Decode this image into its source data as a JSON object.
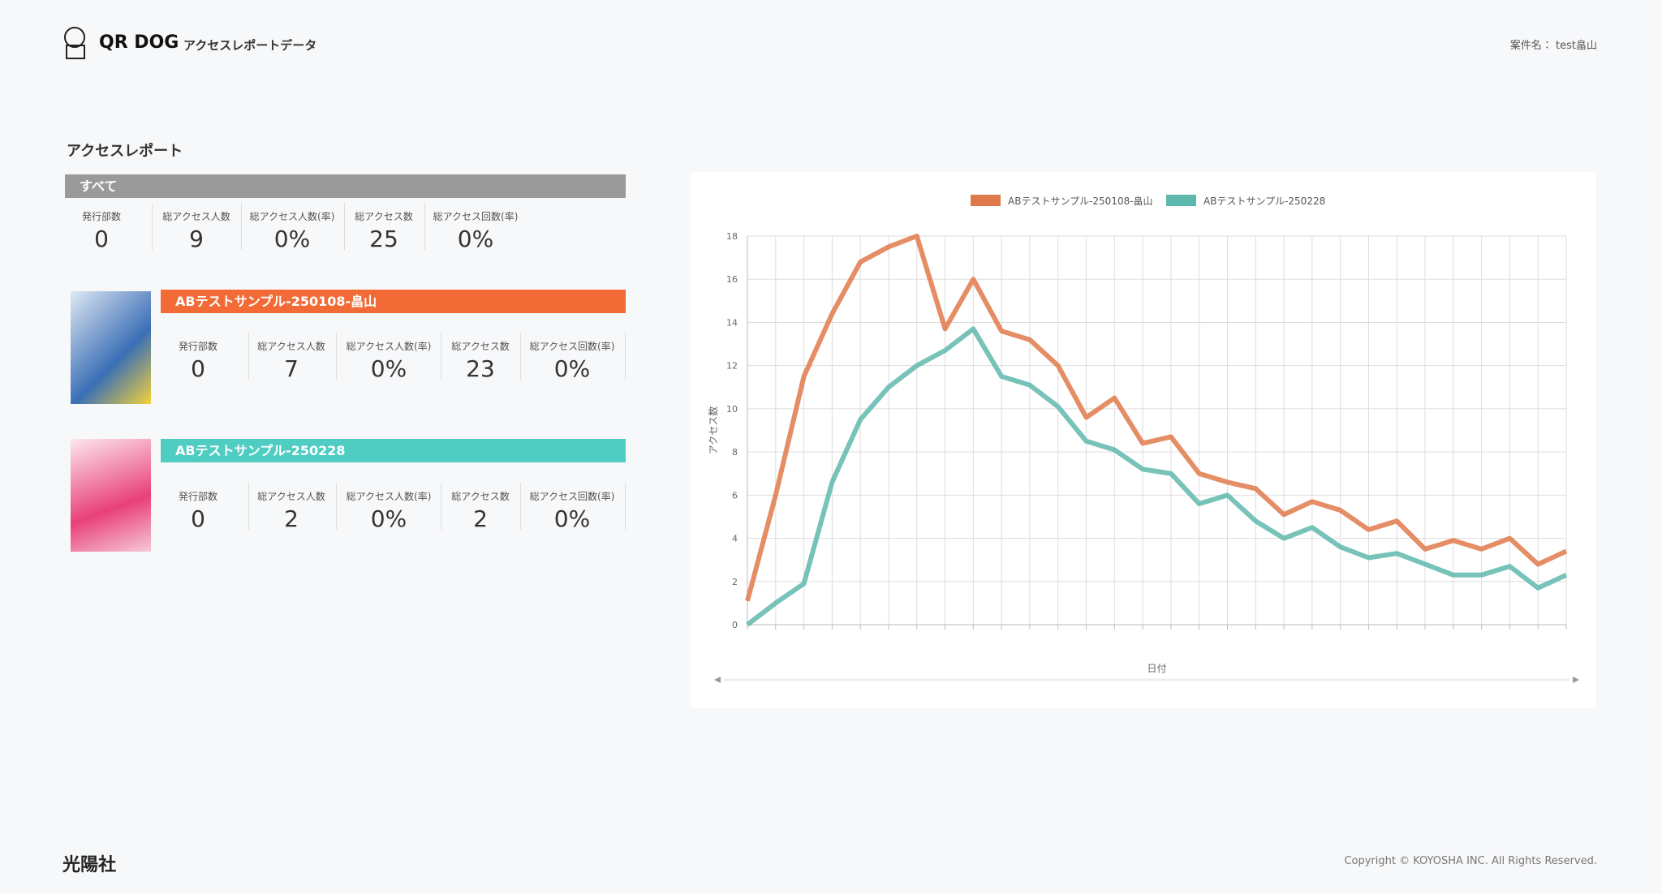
{
  "header": {
    "logo": "QR DOG",
    "title": "アクセスレポートデータ",
    "project": "案件名： test畠山"
  },
  "report": {
    "heading": "アクセスレポート",
    "sections": [
      {
        "name": "すべて",
        "labels": [
          "発行部数",
          "総アクセス人数",
          "総アクセス人数(率)",
          "総アクセス数",
          "総アクセス回数(率)"
        ],
        "values": [
          0,
          9,
          "0%",
          25,
          "0%"
        ]
      },
      {
        "name": "ABテストサンプル-250108-畠山",
        "labels": [
          "発行部数",
          "総アクセス人数",
          "総アクセス人数(率)",
          "総アクセス数",
          "総アクセス回数(率)"
        ],
        "values": [
          0,
          7,
          "0%",
          23,
          "0%"
        ]
      },
      {
        "name": "ABテストサンプル-250228",
        "labels": [
          "発行部数",
          "総アクセス人数",
          "総アクセス人数(率)",
          "総アクセス数",
          "総アクセス回数(率)"
        ],
        "values": [
          0,
          2,
          "0%",
          2,
          "0%"
        ]
      }
    ]
  },
  "chart_data": {
    "type": "line",
    "x_label": "日付",
    "y_label": "アクセス数",
    "legend": "top",
    "grid": true,
    "categories": [
      null,
      null,
      null,
      null,
      null,
      null,
      null,
      null,
      null,
      null,
      null,
      null,
      null,
      null,
      null,
      null,
      null,
      null,
      null,
      null,
      null,
      null,
      null,
      null,
      null,
      null,
      null,
      null,
      null,
      null
    ],
    "series": [
      {
        "name": "ABテストサンプル-250108-畠山",
        "color": "#e0794a",
        "values": [
          1.1,
          6,
          11.5,
          14.4,
          16.8,
          17.5,
          18,
          13.7,
          16,
          13.6,
          13.2,
          12,
          9.6,
          10.5,
          8.4,
          8.7,
          7,
          6.6,
          6.3,
          5.1,
          5.7,
          5.3,
          4.4,
          4.8,
          3.5,
          3.9,
          3.5,
          4,
          2.8,
          3.4
        ]
      },
      {
        "name": "ABテストサンプル-250228",
        "color": "#5fb8ad",
        "values": [
          0,
          1,
          1.9,
          6.6,
          9.5,
          11,
          12,
          12.7,
          13.7,
          11.5,
          11.1,
          10.1,
          8.5,
          8.1,
          7.2,
          7,
          5.6,
          6,
          4.8,
          4,
          4.5,
          3.6,
          3.1,
          3.3,
          2.8,
          2.3,
          2.3,
          2.7,
          1.7,
          2.3
        ]
      }
    ],
    "ylim": [
      0,
      18
    ],
    "yticks": [
      0,
      2,
      4,
      6,
      8,
      10,
      12,
      14,
      16,
      18
    ]
  },
  "footer": {
    "company": "光陽社",
    "copyright": "Copyright © KOYOSHA INC. All Rights Reserved."
  }
}
